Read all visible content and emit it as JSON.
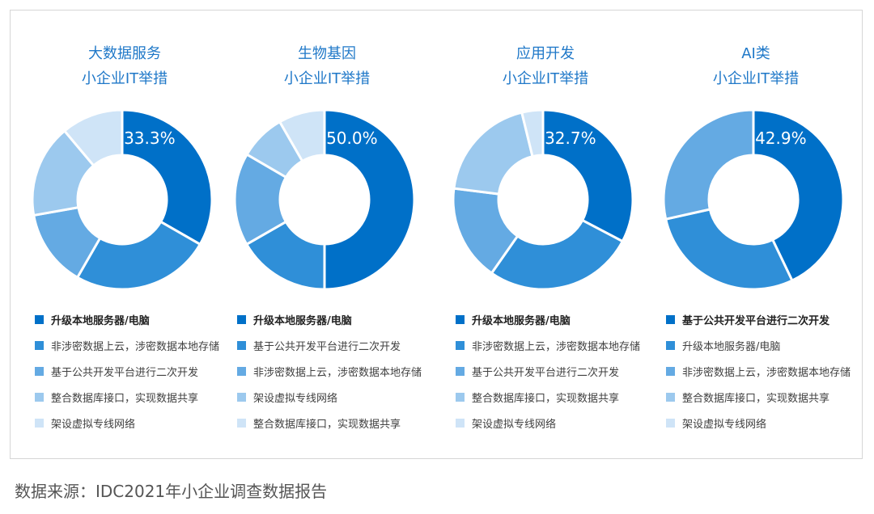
{
  "source": "数据来源：IDC2021年小企业调查数据报告",
  "colors": [
    "#0070c8",
    "#2f8fd8",
    "#64aae3",
    "#9cc9ee",
    "#cfe4f7"
  ],
  "chart_data": [
    {
      "type": "pie",
      "title_lines": [
        "大数据服务",
        "小企业IT举措"
      ],
      "categories": [
        "升级本地服务器/电脑",
        "非涉密数据上云，涉密数据本地存储",
        "基于公共开发平台进行二次开发",
        "整合数据库接口，实现数据共享",
        "架设虚拟专线网络"
      ],
      "values": [
        33.3,
        25.0,
        13.9,
        16.7,
        11.1
      ],
      "label": "33.3%",
      "legend": "bottom"
    },
    {
      "type": "pie",
      "title_lines": [
        "生物基因",
        "小企业IT举措"
      ],
      "categories": [
        "升级本地服务器/电脑",
        "基于公共开发平台进行二次开发",
        "非涉密数据上云，涉密数据本地存储",
        "架设虚拟专线网络",
        "整合数据库接口，实现数据共享"
      ],
      "values": [
        50.0,
        16.7,
        16.7,
        8.3,
        8.3
      ],
      "label": "50.0%",
      "legend": "bottom"
    },
    {
      "type": "pie",
      "title_lines": [
        "应用开发",
        "小企业IT举措"
      ],
      "categories": [
        "升级本地服务器/电脑",
        "非涉密数据上云，涉密数据本地存储",
        "基于公共开发平台进行二次开发",
        "整合数据库接口，实现数据共享",
        "架设虚拟专线网络"
      ],
      "values": [
        32.7,
        27.0,
        17.3,
        19.2,
        3.8
      ],
      "label": "32.7%",
      "legend": "bottom"
    },
    {
      "type": "pie",
      "title_lines": [
        "AI类",
        "小企业IT举措"
      ],
      "categories": [
        "基于公共开发平台进行二次开发",
        "升级本地服务器/电脑",
        "非涉密数据上云，涉密数据本地存储",
        "整合数据库接口，实现数据共享",
        "架设虚拟专线网络"
      ],
      "values": [
        42.9,
        28.6,
        28.5,
        0.0,
        0.0
      ],
      "label": "42.9%",
      "legend": "bottom"
    }
  ]
}
